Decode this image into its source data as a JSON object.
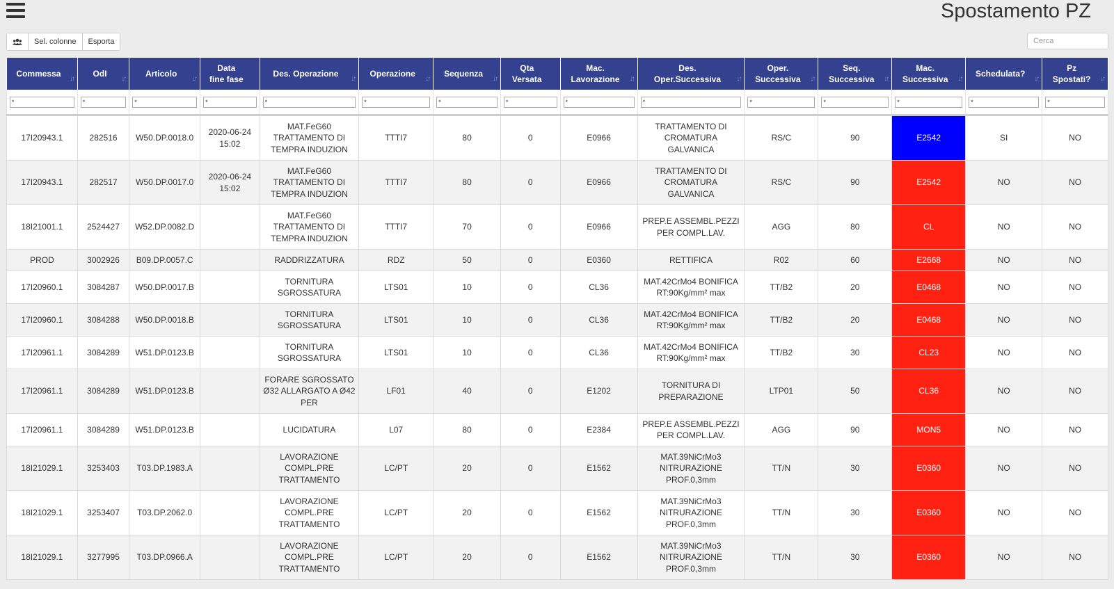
{
  "header": {
    "title": "Spostamento PZ"
  },
  "toolbar": {
    "group_icon": "users-icon",
    "sel_colonne": "Sel. colonne",
    "esporta": "Esporta"
  },
  "search": {
    "placeholder": "Cerca"
  },
  "colors": {
    "header_bg": "#33418e",
    "mac_red": "#ff2112",
    "mac_blue": "#0000ff"
  },
  "columns": [
    {
      "line1": "Commessa",
      "line2": ""
    },
    {
      "line1": "OdI",
      "line2": ""
    },
    {
      "line1": "Articolo",
      "line2": ""
    },
    {
      "line1": "Data",
      "line2": "fine fase"
    },
    {
      "line1": "Des. Operazione",
      "line2": ""
    },
    {
      "line1": "Operazione",
      "line2": ""
    },
    {
      "line1": "Sequenza",
      "line2": ""
    },
    {
      "line1": "Qta",
      "line2": "Versata"
    },
    {
      "line1": "Mac.",
      "line2": "Lavorazione"
    },
    {
      "line1": "Des.",
      "line2": "Oper.Successiva"
    },
    {
      "line1": "Oper.",
      "line2": "Successiva"
    },
    {
      "line1": "Seq.",
      "line2": "Successiva"
    },
    {
      "line1": "Mac.",
      "line2": "Successiva"
    },
    {
      "line1": "Schedulata?",
      "line2": ""
    },
    {
      "line1": "Pz",
      "line2": "Spostati?"
    }
  ],
  "filters": [
    "*",
    "*",
    "*",
    "*",
    "*",
    "*",
    "*",
    "*",
    "*",
    "*",
    "*",
    "*",
    "*",
    "*",
    "*"
  ],
  "rows": [
    {
      "commessa": "17I20943.1",
      "odl": "282516",
      "articolo": "W50.DP.0018.0",
      "data": "2020-06-24 15:02",
      "des_op": "MAT.FeG60 TRATTAMENTO DI TEMPRA INDUZION",
      "operazione": "TTTI7",
      "sequenza": "80",
      "qta": "0",
      "mac_lav": "E0966",
      "des_succ": "TRATTAMENTO DI CROMATURA GALVANICA",
      "oper_succ": "RS/C",
      "seq_succ": "90",
      "mac_succ": "E2542",
      "mac_color": "blue",
      "schedulata": "SI",
      "spostati": "NO"
    },
    {
      "commessa": "17I20943.1",
      "odl": "282517",
      "articolo": "W50.DP.0017.0",
      "data": "2020-06-24 15:02",
      "des_op": "MAT.FeG60 TRATTAMENTO DI TEMPRA INDUZION",
      "operazione": "TTTI7",
      "sequenza": "80",
      "qta": "0",
      "mac_lav": "E0966",
      "des_succ": "TRATTAMENTO DI CROMATURA GALVANICA",
      "oper_succ": "RS/C",
      "seq_succ": "90",
      "mac_succ": "E2542",
      "mac_color": "red",
      "schedulata": "NO",
      "spostati": "NO"
    },
    {
      "commessa": "18I21001.1",
      "odl": "2524427",
      "articolo": "W52.DP.0082.D",
      "data": "",
      "des_op": "MAT.FeG60 TRATTAMENTO DI TEMPRA INDUZION",
      "operazione": "TTTI7",
      "sequenza": "70",
      "qta": "0",
      "mac_lav": "E0966",
      "des_succ": "PREP.E ASSEMBL.PEZZI PER COMPL.LAV.",
      "oper_succ": "AGG",
      "seq_succ": "80",
      "mac_succ": "CL",
      "mac_color": "red",
      "schedulata": "NO",
      "spostati": "NO"
    },
    {
      "commessa": "PROD",
      "odl": "3002926",
      "articolo": "B09.DP.0057.C",
      "data": "",
      "des_op": "RADDRIZZATURA",
      "operazione": "RDZ",
      "sequenza": "50",
      "qta": "0",
      "mac_lav": "E0360",
      "des_succ": "RETTIFICA",
      "oper_succ": "R02",
      "seq_succ": "60",
      "mac_succ": "E2668",
      "mac_color": "red",
      "schedulata": "NO",
      "spostati": "NO"
    },
    {
      "commessa": "17I20960.1",
      "odl": "3084287",
      "articolo": "W50.DP.0017.B",
      "data": "",
      "des_op": "TORNITURA SGROSSATURA",
      "operazione": "LTS01",
      "sequenza": "10",
      "qta": "0",
      "mac_lav": "CL36",
      "des_succ": "MAT.42CrMo4 BONIFICA RT:90Kg/mm² max",
      "oper_succ": "TT/B2",
      "seq_succ": "20",
      "mac_succ": "E0468",
      "mac_color": "red",
      "schedulata": "NO",
      "spostati": "NO"
    },
    {
      "commessa": "17I20960.1",
      "odl": "3084288",
      "articolo": "W50.DP.0018.B",
      "data": "",
      "des_op": "TORNITURA SGROSSATURA",
      "operazione": "LTS01",
      "sequenza": "10",
      "qta": "0",
      "mac_lav": "CL36",
      "des_succ": "MAT.42CrMo4 BONIFICA RT:90Kg/mm² max",
      "oper_succ": "TT/B2",
      "seq_succ": "20",
      "mac_succ": "E0468",
      "mac_color": "red",
      "schedulata": "NO",
      "spostati": "NO"
    },
    {
      "commessa": "17I20961.1",
      "odl": "3084289",
      "articolo": "W51.DP.0123.B",
      "data": "",
      "des_op": "TORNITURA SGROSSATURA",
      "operazione": "LTS01",
      "sequenza": "10",
      "qta": "0",
      "mac_lav": "CL36",
      "des_succ": "MAT.42CrMo4 BONIFICA RT:90Kg/mm² max",
      "oper_succ": "TT/B2",
      "seq_succ": "30",
      "mac_succ": "CL23",
      "mac_color": "red",
      "schedulata": "NO",
      "spostati": "NO"
    },
    {
      "commessa": "17I20961.1",
      "odl": "3084289",
      "articolo": "W51.DP.0123.B",
      "data": "",
      "des_op": "FORARE SGROSSATO Ø32 ALLARGATO A Ø42 PER",
      "operazione": "LF01",
      "sequenza": "40",
      "qta": "0",
      "mac_lav": "E1202",
      "des_succ": "TORNITURA DI PREPARAZIONE",
      "oper_succ": "LTP01",
      "seq_succ": "50",
      "mac_succ": "CL36",
      "mac_color": "red",
      "schedulata": "NO",
      "spostati": "NO"
    },
    {
      "commessa": "17I20961.1",
      "odl": "3084289",
      "articolo": "W51.DP.0123.B",
      "data": "",
      "des_op": "LUCIDATURA",
      "operazione": "L07",
      "sequenza": "80",
      "qta": "0",
      "mac_lav": "E2384",
      "des_succ": "PREP.E ASSEMBL.PEZZI PER COMPL.LAV.",
      "oper_succ": "AGG",
      "seq_succ": "90",
      "mac_succ": "MON5",
      "mac_color": "red",
      "schedulata": "NO",
      "spostati": "NO"
    },
    {
      "commessa": "18I21029.1",
      "odl": "3253403",
      "articolo": "T03.DP.1983.A",
      "data": "",
      "des_op": "LAVORAZIONE COMPL.PRE TRATTAMENTO",
      "operazione": "LC/PT",
      "sequenza": "20",
      "qta": "0",
      "mac_lav": "E1562",
      "des_succ": "MAT.39NiCrMo3 NITRURAZIONE PROF.0,3mm",
      "oper_succ": "TT/N",
      "seq_succ": "30",
      "mac_succ": "E0360",
      "mac_color": "red",
      "schedulata": "NO",
      "spostati": "NO"
    },
    {
      "commessa": "18I21029.1",
      "odl": "3253407",
      "articolo": "T03.DP.2062.0",
      "data": "",
      "des_op": "LAVORAZIONE COMPL.PRE TRATTAMENTO",
      "operazione": "LC/PT",
      "sequenza": "20",
      "qta": "0",
      "mac_lav": "E1562",
      "des_succ": "MAT.39NiCrMo3 NITRURAZIONE PROF.0,3mm",
      "oper_succ": "TT/N",
      "seq_succ": "30",
      "mac_succ": "E0360",
      "mac_color": "red",
      "schedulata": "NO",
      "spostati": "NO"
    },
    {
      "commessa": "18I21029.1",
      "odl": "3277995",
      "articolo": "T03.DP.0966.A",
      "data": "",
      "des_op": "LAVORAZIONE COMPL.PRE TRATTAMENTO",
      "operazione": "LC/PT",
      "sequenza": "20",
      "qta": "0",
      "mac_lav": "E1562",
      "des_succ": "MAT.39NiCrMo3 NITRURAZIONE PROF.0,3mm",
      "oper_succ": "TT/N",
      "seq_succ": "30",
      "mac_succ": "E0360",
      "mac_color": "red",
      "schedulata": "NO",
      "spostati": "NO"
    }
  ]
}
